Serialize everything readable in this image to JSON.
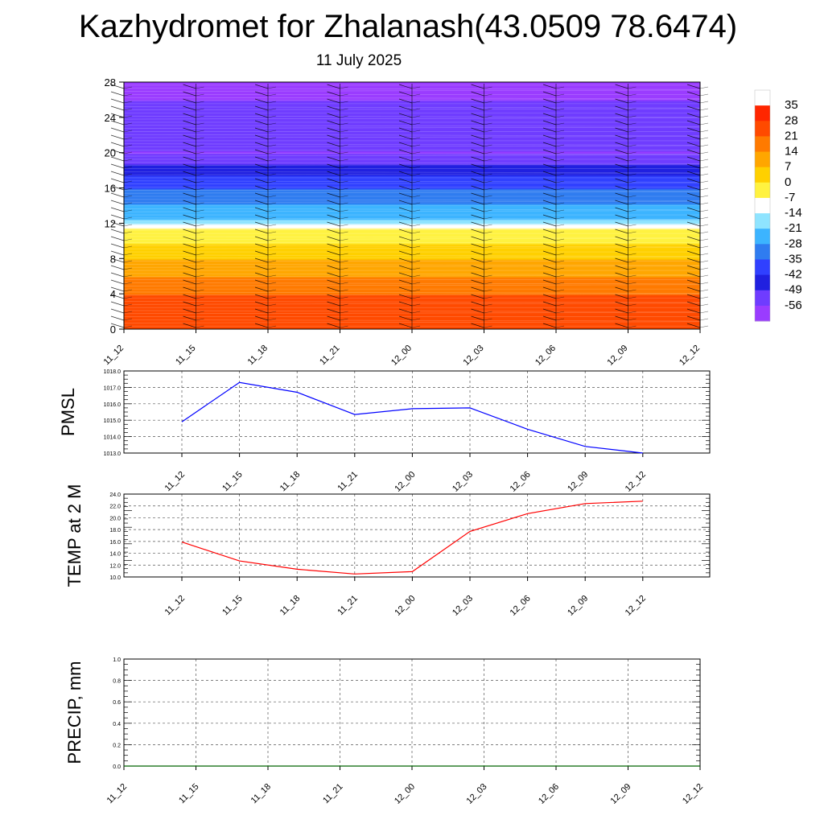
{
  "header": {
    "title": "Kazhydromet for Zhalanash(43.0509 78.6474)",
    "subtitle": "11 July 2025"
  },
  "colors": {
    "pmsl_line": "#0000ff",
    "temp_line": "#ff0000",
    "precip_line": "#006400",
    "grid": "#555555",
    "wind_barb": "#000000"
  },
  "chart_data": [
    {
      "type": "heatmap",
      "title": "",
      "description_of_fill": "temperature cross-section with wind barbs",
      "x_ticks": [
        "11_12",
        "11_15",
        "11_18",
        "11_21",
        "12_00",
        "12_03",
        "12_06",
        "12_09",
        "12_12"
      ],
      "y_ticks": [
        0,
        4,
        8,
        12,
        16,
        20,
        24,
        28
      ],
      "ylim": [
        0,
        28
      ],
      "colorbar_labels": [
        "35",
        "28",
        "21",
        "14",
        "7",
        "0",
        "-7",
        "-14",
        "-21",
        "-28",
        "-35",
        "-42",
        "-49",
        "-56"
      ],
      "colorbar_colors": [
        "#ffffff",
        "#ff2600",
        "#ff4a00",
        "#ff7a00",
        "#ffa600",
        "#ffd000",
        "#fff240",
        "#ffffff",
        "#8fe4ff",
        "#3cb4ff",
        "#2f7cf0",
        "#3040ff",
        "#2020e0",
        "#6f3cff",
        "#9a3cff"
      ],
      "temperature_profile": [
        {
          "height": 0,
          "temp": 28
        },
        {
          "height": 4,
          "temp": 21
        },
        {
          "height": 8,
          "temp": 7
        },
        {
          "height": 11.5,
          "temp": -7
        },
        {
          "height": 12.5,
          "temp": -21
        },
        {
          "height": 16,
          "temp": -35
        },
        {
          "height": 20,
          "temp": -56
        },
        {
          "height": 24,
          "temp": -49
        },
        {
          "height": 28,
          "temp": -63
        }
      ]
    },
    {
      "type": "line",
      "ylabel": "PMSL",
      "categories": [
        "11_12",
        "11_15",
        "11_18",
        "11_21",
        "12_00",
        "12_03",
        "12_06",
        "12_09",
        "12_12"
      ],
      "series": [
        {
          "values": [
            1014.9,
            1017.3,
            1016.7,
            1015.35,
            1015.7,
            1015.75,
            1014.45,
            1013.4,
            1013.0
          ]
        }
      ],
      "ylim": [
        1013.0,
        1018.0
      ],
      "y_ticks": [
        "1013.0",
        "1014.0",
        "1015.0",
        "1016.0",
        "1017.0",
        "1018.0"
      ],
      "grid": true
    },
    {
      "type": "line",
      "ylabel": "TEMP at 2 M",
      "categories": [
        "11_12",
        "11_15",
        "11_18",
        "11_21",
        "12_00",
        "12_03",
        "12_06",
        "12_09",
        "12_12"
      ],
      "series": [
        {
          "values": [
            15.9,
            12.7,
            11.3,
            10.5,
            10.9,
            17.7,
            20.7,
            22.4,
            22.8
          ]
        }
      ],
      "ylim": [
        10.0,
        24.0
      ],
      "y_ticks": [
        "10.0",
        "12.0",
        "14.0",
        "16.0",
        "18.0",
        "20.0",
        "22.0",
        "24.0"
      ],
      "grid": true
    },
    {
      "type": "line",
      "ylabel": "PRECIP, mm",
      "categories": [
        "11_12",
        "11_15",
        "11_18",
        "11_21",
        "12_00",
        "12_03",
        "12_06",
        "12_09",
        "12_12"
      ],
      "series": [
        {
          "values": [
            0,
            0,
            0,
            0,
            0,
            0,
            0,
            0,
            0
          ]
        }
      ],
      "ylim": [
        0.0,
        1.0
      ],
      "y_ticks": [
        "0.0",
        "0.2",
        "0.4",
        "0.6",
        "0.8",
        "1.0"
      ],
      "grid": true
    }
  ]
}
